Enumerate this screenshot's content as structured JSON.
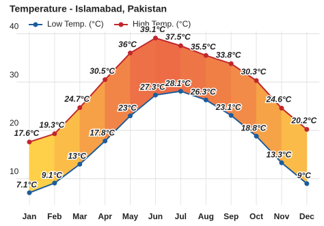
{
  "chart_data": {
    "type": "line",
    "title": "Temperature - Islamabad, Pakistan",
    "categories": [
      "Jan",
      "Feb",
      "Mar",
      "Apr",
      "May",
      "Jun",
      "Jul",
      "Aug",
      "Sep",
      "Oct",
      "Nov",
      "Dec"
    ],
    "series": [
      {
        "name": "Low Temp. (°C)",
        "color": "#1b5c9c",
        "values": [
          7.1,
          9.1,
          13,
          17.8,
          23,
          27.3,
          28.1,
          26.3,
          23.1,
          18.8,
          13.3,
          9
        ],
        "value_labels": [
          "7.1°C",
          "9.1°C",
          "13°C",
          "17.8°C",
          "23°C",
          "27.3°C",
          "28.1°C",
          "26.3°C",
          "23.1°C",
          "18.8°C",
          "13.3°C",
          "9°C"
        ]
      },
      {
        "name": "High Temp. (°C)",
        "color": "#c0272d",
        "values": [
          17.6,
          19.3,
          24.7,
          30.5,
          36,
          39.1,
          37.5,
          35.5,
          33.8,
          30.3,
          24.6,
          20.2
        ],
        "value_labels": [
          "17.6°C",
          "19.3°C",
          "24.7°C",
          "30.5°C",
          "36°C",
          "39.1°C",
          "37.5°C",
          "35.5°C",
          "33.8°C",
          "30.3°C",
          "24.6°C",
          "20.2°C"
        ]
      }
    ],
    "ylim": [
      4.6,
      41.6
    ],
    "yticks": [
      10,
      20,
      30,
      40
    ],
    "grid": true
  }
}
